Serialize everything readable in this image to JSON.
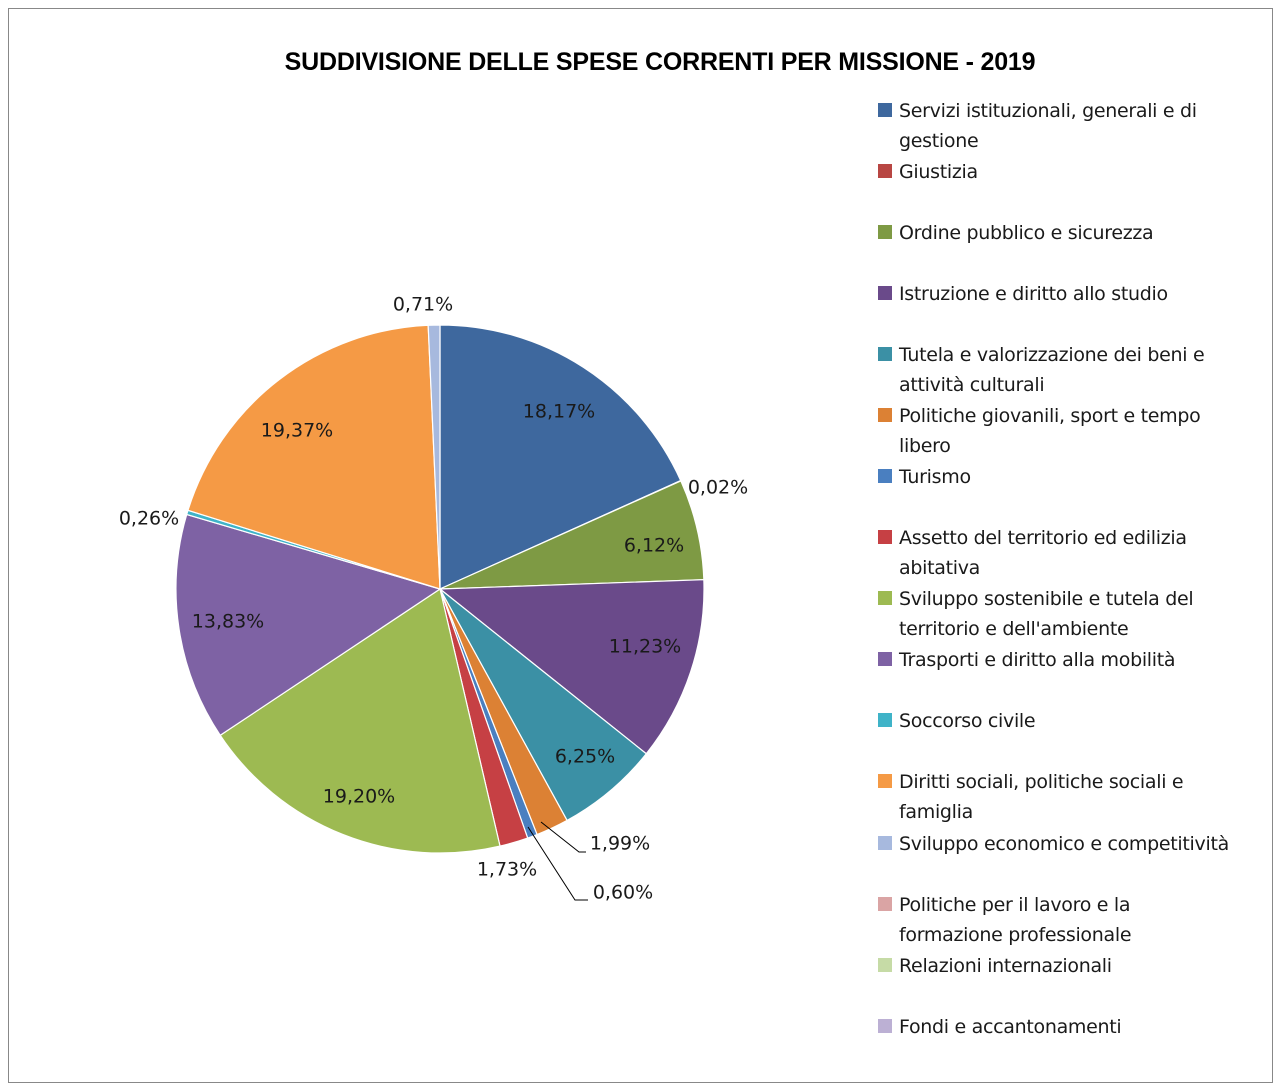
{
  "chart_data": {
    "type": "pie",
    "title": "SUDDIVISIONE DELLE SPESE CORRENTI PER MISSIONE - 2019",
    "legend_position": "right",
    "slices": [
      {
        "name": "Servizi istituzionali, generali e di gestione",
        "value": 18.17,
        "label": "18,17%",
        "color": "#3e689e"
      },
      {
        "name": "Giustizia",
        "value": 0.02,
        "label": "0,02%",
        "color": "#b84643"
      },
      {
        "name": "Ordine pubblico e sicurezza",
        "value": 6.12,
        "label": "6,12%",
        "color": "#7e9a44"
      },
      {
        "name": "Istruzione e diritto allo studio",
        "value": 11.23,
        "label": "11,23%",
        "color": "#6a4a8a"
      },
      {
        "name": "Tutela e valorizzazione dei beni e attività culturali",
        "value": 6.25,
        "label": "6,25%",
        "color": "#3b90a5"
      },
      {
        "name": "Politiche giovanili, sport e tempo libero",
        "value": 1.99,
        "label": "1,99%",
        "color": "#dc8134"
      },
      {
        "name": "Turismo",
        "value": 0.6,
        "label": "0,60%",
        "color": "#4a7fc0"
      },
      {
        "name": "Assetto del territorio ed edilizia abitativa",
        "value": 1.73,
        "label": "1,73%",
        "color": "#c64044"
      },
      {
        "name": "Sviluppo sostenibile e tutela del territorio e dell'ambiente",
        "value": 19.2,
        "label": "19,20%",
        "color": "#9dba52"
      },
      {
        "name": "Trasporti e diritto alla mobilità",
        "value": 13.83,
        "label": "13,83%",
        "color": "#7e62a4"
      },
      {
        "name": "Soccorso civile",
        "value": 0.26,
        "label": "0,26%",
        "color": "#3fb3c8"
      },
      {
        "name": "Diritti sociali, politiche sociali e famiglia",
        "value": 19.37,
        "label": "19,37%",
        "color": "#f59a45"
      },
      {
        "name": "Sviluppo economico e competitività",
        "value": 0.71,
        "label": "0,71%",
        "color": "#a7b9de"
      },
      {
        "name": "Politiche per il lavoro e la formazione professionale",
        "value": 0,
        "label": "",
        "color": "#daa4a4"
      },
      {
        "name": "Relazioni internazionali",
        "value": 0,
        "label": "",
        "color": "#c6dba6"
      },
      {
        "name": "Fondi e accantonamenti",
        "value": 0,
        "label": "",
        "color": "#bcb0d4"
      }
    ]
  },
  "legend": {
    "lines": [
      [
        "Servizi istituzionali,  generali e di",
        "gestione"
      ],
      [
        "Giustizia"
      ],
      [
        "Ordine pubblico e sicurezza"
      ],
      [
        "Istruzione e diritto allo studio"
      ],
      [
        "Tutela e valorizzazione dei beni e",
        "attività culturali"
      ],
      [
        "Politiche giovanili,  sport e tempo",
        "libero"
      ],
      [
        "Turismo"
      ],
      [
        "Assetto del territorio ed edilizia",
        "abitativa"
      ],
      [
        "Sviluppo sostenibile  e tutela del",
        "territorio e dell'ambiente"
      ],
      [
        "Trasporti e diritto alla mobilità"
      ],
      [
        "Soccorso civile"
      ],
      [
        "Diritti sociali,  politiche sociali e",
        "famiglia"
      ],
      [
        "Sviluppo economico e competitività"
      ],
      [
        "Politiche per il lavoro e la",
        "formazione professionale"
      ],
      [
        "Relazioni internazionali"
      ],
      [
        "Fondi e accantonamenti"
      ]
    ]
  }
}
